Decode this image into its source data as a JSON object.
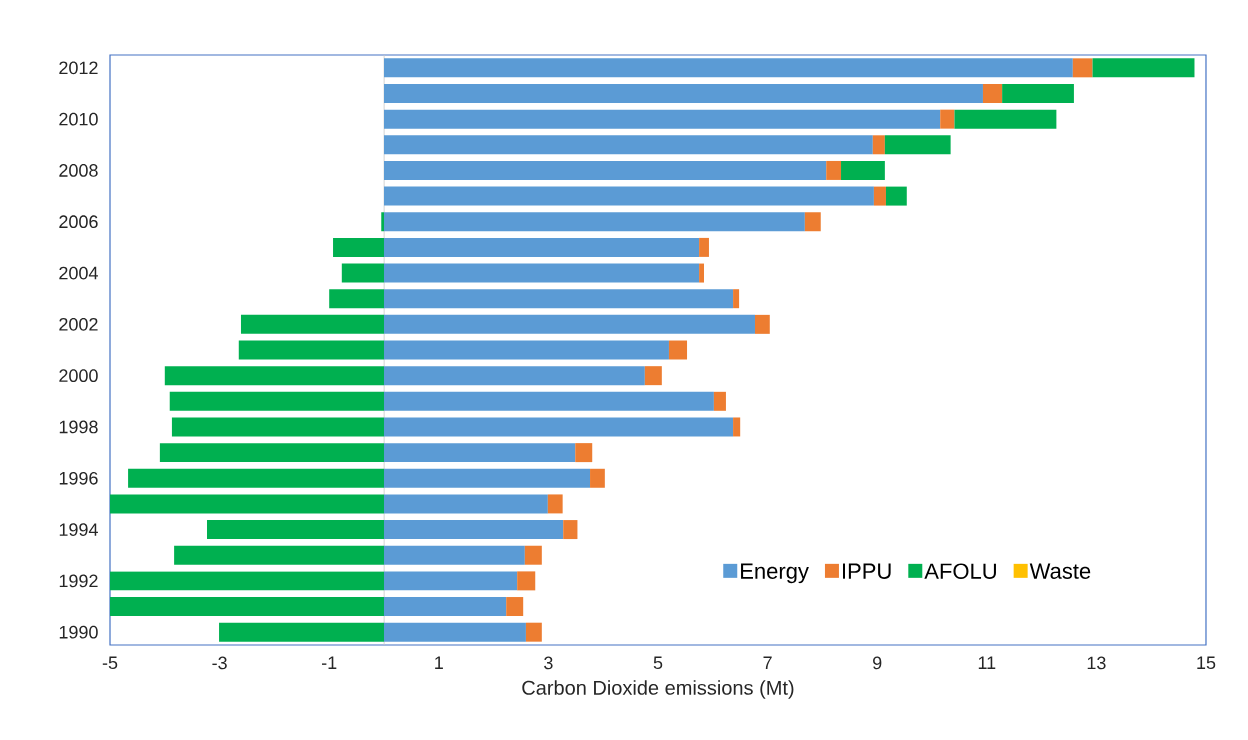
{
  "chart_data": {
    "type": "bar",
    "orientation": "horizontal",
    "stacked": true,
    "xlabel": "Carbon Dioxide emissions (Mt)",
    "categories": [
      "2012",
      null,
      "2010",
      null,
      "2008",
      null,
      "2006",
      null,
      "2004",
      null,
      "2002",
      null,
      "2000",
      null,
      "1998",
      null,
      "1996",
      null,
      "1994",
      null,
      "1992",
      null,
      "1990"
    ],
    "series": [
      {
        "name": "Energy",
        "color": "#5b9bd5",
        "values": [
          12.57,
          10.93,
          10.15,
          8.92,
          8.07,
          8.94,
          7.68,
          5.75,
          5.75,
          6.37,
          6.77,
          5.2,
          4.76,
          6.02,
          6.37,
          3.49,
          3.76,
          2.99,
          3.27,
          2.57,
          2.43,
          2.23,
          2.59
        ]
      },
      {
        "name": "IPPU",
        "color": "#ed7d31",
        "values": [
          0.36,
          0.35,
          0.26,
          0.22,
          0.27,
          0.22,
          0.29,
          0.18,
          0.09,
          0.11,
          0.27,
          0.33,
          0.31,
          0.22,
          0.13,
          0.31,
          0.27,
          0.27,
          0.26,
          0.31,
          0.33,
          0.31,
          0.29
        ]
      },
      {
        "name": "AFOLU",
        "color": "#00b050",
        "values": [
          1.86,
          1.31,
          1.86,
          1.2,
          0.8,
          0.38,
          -0.05,
          -0.93,
          -0.77,
          -1.0,
          -2.61,
          -2.65,
          -4.0,
          -3.91,
          -3.87,
          -4.09,
          -4.67,
          -5,
          -3.23,
          -3.83,
          -5,
          -5,
          -3.01
        ]
      },
      {
        "name": "Waste",
        "color": "#ffc000",
        "values": [
          0,
          0,
          0,
          0,
          0,
          0,
          0,
          0,
          0,
          0,
          0,
          0,
          0,
          0,
          0,
          0,
          0,
          0,
          0,
          0,
          0,
          0,
          0
        ]
      }
    ],
    "xlim": [
      -5,
      15
    ],
    "xticks": [
      -5,
      -3,
      -1,
      1,
      3,
      5,
      7,
      9,
      11,
      13,
      15
    ],
    "legend": "bottom right"
  }
}
